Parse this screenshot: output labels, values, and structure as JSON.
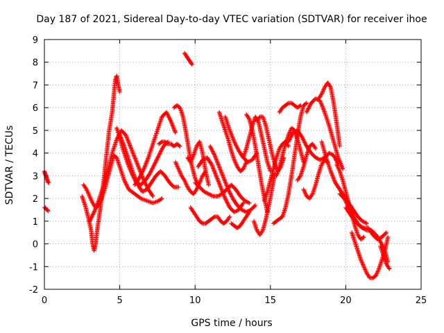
{
  "chart_data": {
    "type": "scatter",
    "title": "Day 187 of 2021, Sidereal Day-to-day VTEC variation (SDTVAR) for receiver ihoe",
    "xlabel": "GPS time / hours",
    "ylabel": "SDTVAR / TECUs",
    "xlim": [
      0,
      25
    ],
    "ylim": [
      -2,
      9
    ],
    "xticks": [
      "0",
      "5",
      "10",
      "15",
      "20",
      "25"
    ],
    "yticks": [
      "-2",
      "-1",
      "0",
      "1",
      "2",
      "3",
      "4",
      "5",
      "6",
      "7",
      "8",
      "9"
    ],
    "grid": true,
    "marker": "+",
    "color": "#ff0000",
    "series": [
      {
        "x": [
          0.0,
          0.05,
          0.1,
          0.15,
          0.2,
          0.25,
          0.3
        ],
        "y": [
          3.2,
          3.1,
          3.0,
          2.9,
          2.8,
          2.7,
          2.7
        ]
      },
      {
        "x": [
          0.0,
          0.05,
          0.1,
          0.15,
          0.2,
          0.25
        ],
        "y": [
          1.6,
          1.6,
          1.55,
          1.5,
          1.5,
          1.45
        ]
      },
      {
        "x": [
          2.5,
          2.7,
          2.9,
          3.1,
          3.2,
          3.3,
          3.4,
          3.5,
          3.7,
          3.9,
          4.1,
          4.3,
          4.5,
          4.6,
          4.7,
          4.8,
          4.9,
          5.0
        ],
        "y": [
          2.1,
          1.7,
          1.2,
          0.6,
          0.0,
          -0.3,
          0.0,
          0.6,
          1.5,
          2.6,
          3.8,
          5.0,
          5.8,
          6.5,
          7.2,
          7.4,
          7.0,
          6.7
        ]
      },
      {
        "x": [
          2.6,
          2.8,
          3.0,
          3.2,
          3.4,
          3.6,
          3.8,
          4.0,
          4.2,
          4.4,
          4.6,
          4.8,
          5.0,
          5.3,
          5.6,
          6.0,
          6.4,
          6.8,
          7.2,
          7.6,
          7.8
        ],
        "y": [
          2.6,
          2.4,
          2.1,
          1.8,
          1.6,
          1.7,
          2.0,
          2.4,
          2.9,
          3.4,
          3.9,
          3.8,
          3.4,
          2.8,
          2.4,
          2.2,
          2.0,
          1.9,
          1.8,
          1.9,
          2.0
        ]
      },
      {
        "x": [
          3.0,
          3.3,
          3.6,
          3.9,
          4.2,
          4.5,
          4.8,
          5.1,
          5.4,
          5.7,
          6.0,
          6.3,
          6.6,
          6.9,
          7.2
        ],
        "y": [
          1.0,
          1.4,
          1.9,
          2.5,
          3.2,
          4.0,
          4.6,
          5.0,
          4.8,
          4.3,
          3.8,
          3.3,
          2.8,
          2.4,
          2.1
        ]
      },
      {
        "x": [
          4.8,
          5.0,
          5.2,
          5.5,
          5.8,
          6.1,
          6.4,
          6.7,
          7.0,
          7.3,
          7.6,
          7.9,
          8.2
        ],
        "y": [
          5.1,
          4.7,
          4.2,
          3.6,
          3.1,
          2.7,
          2.6,
          2.8,
          3.1,
          3.5,
          3.9,
          4.3,
          4.5
        ]
      },
      {
        "x": [
          5.0,
          5.3,
          5.6,
          5.9,
          6.2,
          6.5,
          6.8,
          7.1,
          7.4,
          7.7,
          8.0,
          8.3,
          8.6,
          8.9
        ],
        "y": [
          4.8,
          4.3,
          3.7,
          3.1,
          2.6,
          2.3,
          2.4,
          2.7,
          3.0,
          3.2,
          3.0,
          2.7,
          2.5,
          2.5
        ]
      },
      {
        "x": [
          6.0,
          6.3,
          6.6,
          6.9,
          7.2,
          7.5,
          7.8,
          8.1,
          8.4,
          8.7
        ],
        "y": [
          2.6,
          2.9,
          3.3,
          3.8,
          4.4,
          5.0,
          5.6,
          5.8,
          5.4,
          4.9
        ]
      },
      {
        "x": [
          7.6,
          7.8,
          8.0,
          8.2,
          8.4,
          8.6,
          8.8,
          9.0
        ],
        "y": [
          4.4,
          4.5,
          4.5,
          4.4,
          4.4,
          4.3,
          4.4,
          4.3
        ]
      },
      {
        "x": [
          8.6,
          8.8,
          9.0,
          9.2,
          9.4,
          9.6,
          9.8,
          10.0,
          10.2
        ],
        "y": [
          6.0,
          6.1,
          6.0,
          5.6,
          4.9,
          4.1,
          3.4,
          2.9,
          2.6
        ]
      },
      {
        "x": [
          8.7,
          8.9,
          9.1,
          9.3,
          9.5,
          9.7,
          9.9,
          10.1,
          10.3,
          10.5,
          10.7
        ],
        "y": [
          3.6,
          3.3,
          3.0,
          2.8,
          2.5,
          2.3,
          2.2,
          2.4,
          2.7,
          3.0,
          3.2
        ]
      },
      {
        "x": [
          9.3,
          9.4,
          9.5,
          9.6,
          9.7,
          9.8
        ],
        "y": [
          8.4,
          8.3,
          8.2,
          8.1,
          8.0,
          7.9
        ]
      },
      {
        "x": [
          9.5,
          9.7,
          9.9,
          10.1,
          10.3,
          10.5,
          10.7,
          10.9
        ],
        "y": [
          3.8,
          3.6,
          3.9,
          4.3,
          4.5,
          4.0,
          3.2,
          2.6
        ]
      },
      {
        "x": [
          9.7,
          9.9,
          10.1,
          10.3,
          10.5,
          10.7,
          10.9,
          11.1,
          11.3,
          11.5,
          11.7,
          11.9,
          12.1,
          12.3
        ],
        "y": [
          1.6,
          1.4,
          1.2,
          1.0,
          0.9,
          0.9,
          1.0,
          1.1,
          1.2,
          1.2,
          1.0,
          0.9,
          1.0,
          1.2
        ]
      },
      {
        "x": [
          10.0,
          10.3,
          10.6,
          10.9,
          11.2,
          11.5,
          11.8,
          12.1,
          12.4,
          12.7,
          13.0,
          13.3,
          13.6
        ],
        "y": [
          2.7,
          2.5,
          2.3,
          2.2,
          2.1,
          2.1,
          2.2,
          2.4,
          2.6,
          2.4,
          2.1,
          1.9,
          1.8
        ]
      },
      {
        "x": [
          10.2,
          10.5,
          10.8,
          11.1,
          11.4,
          11.7,
          12.0,
          12.3,
          12.6,
          12.9,
          13.2
        ],
        "y": [
          3.4,
          3.7,
          3.8,
          3.5,
          3.0,
          2.5,
          2.0,
          1.6,
          1.4,
          1.5,
          1.8
        ]
      },
      {
        "x": [
          11.0,
          11.3,
          11.6,
          11.9,
          12.2,
          12.5,
          12.8,
          13.1,
          13.4,
          13.7,
          14.0
        ],
        "y": [
          4.3,
          3.9,
          3.4,
          2.9,
          2.4,
          2.0,
          1.7,
          1.5,
          1.4,
          1.5,
          1.7
        ]
      },
      {
        "x": [
          11.6,
          11.8,
          12.0,
          12.2,
          12.4,
          12.6,
          12.8,
          13.0,
          13.2,
          13.4
        ],
        "y": [
          5.8,
          5.4,
          5.0,
          4.6,
          4.1,
          3.7,
          3.4,
          3.2,
          3.3,
          3.6
        ]
      },
      {
        "x": [
          12.0,
          12.3,
          12.6,
          12.9,
          13.2,
          13.5,
          13.8,
          14.1
        ],
        "y": [
          5.6,
          5.0,
          4.5,
          4.1,
          3.8,
          3.6,
          3.7,
          4.0
        ]
      },
      {
        "x": [
          12.4,
          12.6,
          12.8,
          13.0,
          13.2,
          13.4,
          13.6
        ],
        "y": [
          0.9,
          0.8,
          0.7,
          0.8,
          1.0,
          1.2,
          1.4
        ]
      },
      {
        "x": [
          13.2,
          13.4,
          13.6,
          13.8,
          14.0,
          14.2,
          14.4,
          14.6,
          14.8,
          15.0
        ],
        "y": [
          3.8,
          4.2,
          4.7,
          5.2,
          5.6,
          5.4,
          4.8,
          4.2,
          3.6,
          3.2
        ]
      },
      {
        "x": [
          13.4,
          13.6,
          13.8,
          14.0,
          14.2,
          14.4,
          14.6,
          14.8
        ],
        "y": [
          5.7,
          5.5,
          5.0,
          4.3,
          3.5,
          2.7,
          2.0,
          1.4
        ]
      },
      {
        "x": [
          13.9,
          14.1,
          14.3,
          14.5,
          14.7,
          14.9,
          15.1,
          15.3
        ],
        "y": [
          1.0,
          0.6,
          0.4,
          0.6,
          1.1,
          1.7,
          2.4,
          3.1
        ]
      },
      {
        "x": [
          14.1,
          14.3,
          14.5,
          14.7,
          14.9,
          15.1,
          15.3,
          15.5,
          15.7,
          15.9
        ],
        "y": [
          5.4,
          5.6,
          5.6,
          5.2,
          4.6,
          4.0,
          3.5,
          3.2,
          3.4,
          3.8
        ]
      },
      {
        "x": [
          14.6,
          14.8,
          15.0,
          15.2,
          15.4,
          15.6,
          15.8,
          16.0,
          16.2
        ],
        "y": [
          1.9,
          2.3,
          2.8,
          3.3,
          3.8,
          4.2,
          4.4,
          4.5,
          4.3
        ]
      },
      {
        "x": [
          15.2,
          15.4,
          15.6,
          15.8
        ],
        "y": [
          0.9,
          1.0,
          1.1,
          1.2
        ]
      },
      {
        "x": [
          15.4,
          15.6,
          15.8,
          16.0,
          16.2,
          16.4,
          16.6,
          16.8,
          17.0,
          17.2
        ],
        "y": [
          3.0,
          3.4,
          3.9,
          4.4,
          4.8,
          5.1,
          5.0,
          4.6,
          4.1,
          3.6
        ]
      },
      {
        "x": [
          15.8,
          16.0,
          16.2,
          16.4,
          16.6,
          16.8,
          17.0,
          17.2,
          17.4
        ],
        "y": [
          1.2,
          1.6,
          2.2,
          3.0,
          3.9,
          4.8,
          5.6,
          6.1,
          6.2
        ]
      },
      {
        "x": [
          15.6,
          15.8,
          16.0,
          16.2,
          16.4,
          16.6,
          16.8,
          17.0
        ],
        "y": [
          5.8,
          6.0,
          6.1,
          6.2,
          6.2,
          6.1,
          6.0,
          6.1
        ]
      },
      {
        "x": [
          16.2,
          16.5,
          16.8,
          17.1,
          17.4,
          17.7,
          18.0,
          18.3,
          18.6,
          18.9,
          19.2,
          19.5
        ],
        "y": [
          4.5,
          4.9,
          5.0,
          4.7,
          4.3,
          4.0,
          3.8,
          3.7,
          3.8,
          4.0,
          3.9,
          3.5
        ]
      },
      {
        "x": [
          16.8,
          17.0,
          17.2,
          17.4,
          17.6,
          17.8,
          18.0
        ],
        "y": [
          2.8,
          3.0,
          3.4,
          3.9,
          4.3,
          4.4,
          4.2
        ]
      },
      {
        "x": [
          17.2,
          17.4,
          17.6,
          17.8,
          18.0,
          18.2,
          18.4,
          18.6,
          18.8
        ],
        "y": [
          2.4,
          2.1,
          2.0,
          2.2,
          2.6,
          3.1,
          3.5,
          3.7,
          3.6
        ]
      },
      {
        "x": [
          17.4,
          17.7,
          18.0,
          18.3,
          18.6,
          18.9,
          19.2,
          19.5,
          19.8
        ],
        "y": [
          5.8,
          6.2,
          6.4,
          6.3,
          5.8,
          5.2,
          4.5,
          3.8,
          3.3
        ]
      },
      {
        "x": [
          18.2,
          18.4,
          18.6,
          18.8,
          19.0,
          19.2,
          19.4,
          19.6
        ],
        "y": [
          6.4,
          6.6,
          6.9,
          7.1,
          6.9,
          6.2,
          5.3,
          4.3
        ]
      },
      {
        "x": [
          18.4,
          18.7,
          19.0,
          19.3,
          19.6,
          19.9,
          20.2,
          20.5,
          20.8,
          21.1,
          21.4
        ],
        "y": [
          4.5,
          3.8,
          3.2,
          2.7,
          2.4,
          2.1,
          1.8,
          1.5,
          1.2,
          1.0,
          0.9
        ]
      },
      {
        "x": [
          19.4,
          19.6,
          19.8,
          20.0,
          20.2,
          20.4,
          20.6,
          20.8,
          21.0,
          21.2
        ],
        "y": [
          3.5,
          3.2,
          2.8,
          2.3,
          1.8,
          1.3,
          0.8,
          0.4,
          0.2,
          0.3
        ]
      },
      {
        "x": [
          19.6,
          19.9,
          20.2,
          20.5,
          20.8,
          21.1,
          21.4,
          21.7,
          22.0,
          22.3,
          22.6,
          22.8
        ],
        "y": [
          2.2,
          2.0,
          1.6,
          1.2,
          0.9,
          0.7,
          0.6,
          0.6,
          0.4,
          0.1,
          -0.3,
          -0.8
        ]
      },
      {
        "x": [
          20.0,
          20.3,
          20.6,
          20.9,
          21.2,
          21.5,
          21.8,
          22.1,
          22.4,
          22.7
        ],
        "y": [
          1.6,
          1.3,
          1.0,
          0.8,
          0.7,
          0.7,
          0.4,
          0.2,
          0.3,
          0.5
        ]
      },
      {
        "x": [
          20.4,
          20.6,
          20.8,
          21.0,
          21.2,
          21.4,
          21.6,
          21.8,
          22.0,
          22.2,
          22.4,
          22.6,
          22.8
        ],
        "y": [
          0.5,
          0.1,
          -0.3,
          -0.7,
          -1.0,
          -1.3,
          -1.5,
          -1.5,
          -1.4,
          -1.1,
          -0.7,
          -0.3,
          0.3
        ]
      },
      {
        "x": [
          22.3,
          22.5,
          22.7,
          22.9
        ],
        "y": [
          -0.1,
          -0.5,
          -0.9,
          -1.1
        ]
      }
    ]
  }
}
